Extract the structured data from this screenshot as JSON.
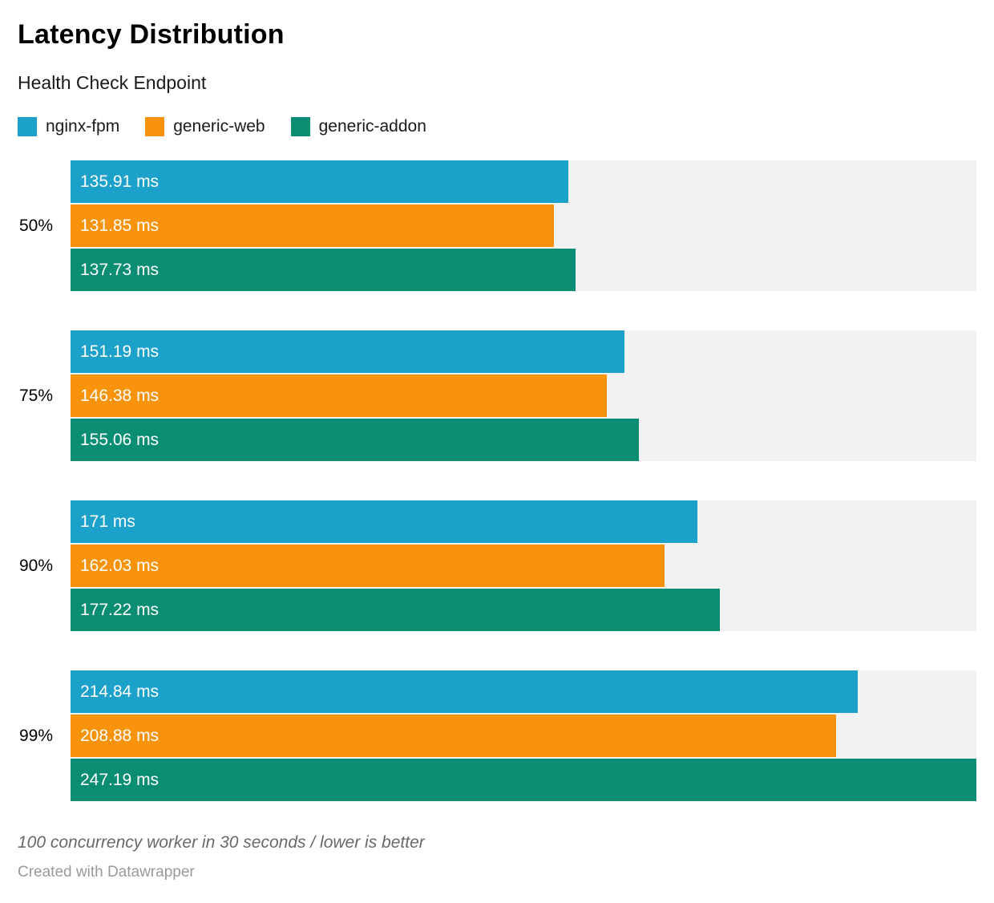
{
  "header": {
    "title": "Latency Distribution",
    "subtitle": "Health Check Endpoint"
  },
  "legend": {
    "items": [
      {
        "label": "nginx-fpm",
        "color": "#1CA1CB"
      },
      {
        "label": "generic-web",
        "color": "#F8930B"
      },
      {
        "label": "generic-addon",
        "color": "#0A8E73"
      }
    ]
  },
  "chart_data": {
    "type": "bar",
    "orientation": "horizontal",
    "unit": "ms",
    "title": "Latency Distribution",
    "subtitle": "Health Check Endpoint",
    "categories": [
      "50%",
      "75%",
      "90%",
      "99%"
    ],
    "series": [
      {
        "name": "nginx-fpm",
        "color": "#1CA1CB",
        "values": [
          135.91,
          151.19,
          171,
          214.84
        ],
        "value_labels": [
          "135.91 ms",
          "151.19 ms",
          "171 ms",
          "214.84 ms"
        ]
      },
      {
        "name": "generic-web",
        "color": "#F8930B",
        "values": [
          131.85,
          146.38,
          162.03,
          208.88
        ],
        "value_labels": [
          "131.85 ms",
          "146.38 ms",
          "162.03 ms",
          "208.88 ms"
        ]
      },
      {
        "name": "generic-addon",
        "color": "#0A8E73",
        "values": [
          137.73,
          155.06,
          177.22,
          247.19
        ],
        "value_labels": [
          "137.73 ms",
          "155.06 ms",
          "177.22 ms",
          "247.19 ms"
        ]
      }
    ],
    "xlim": [
      0,
      247.19
    ],
    "track_color": "#F2F2F2",
    "grid": false,
    "legend_position": "top",
    "value_labels_inside_bars": true
  },
  "footer": {
    "footnote": "100 concurrency worker in 30 seconds / lower is better",
    "byline": "Created with Datawrapper"
  }
}
